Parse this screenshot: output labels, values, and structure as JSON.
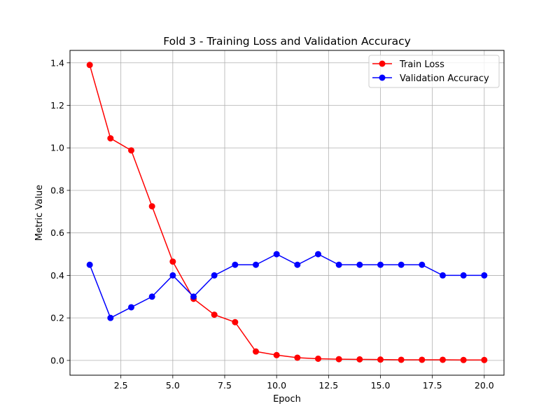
{
  "chart_data": {
    "type": "line",
    "title": "Fold 3 - Training Loss and Validation Accuracy",
    "xlabel": "Epoch",
    "ylabel": "Metric Value",
    "xlim": [
      0.05,
      20.95
    ],
    "ylim": [
      -0.0695,
      1.4585
    ],
    "xticks": [
      2.5,
      5.0,
      7.5,
      10.0,
      12.5,
      15.0,
      17.5,
      20.0
    ],
    "xtick_labels": [
      "2.5",
      "5.0",
      "7.5",
      "10.0",
      "12.5",
      "15.0",
      "17.5",
      "20.0"
    ],
    "yticks": [
      0.0,
      0.2,
      0.4,
      0.6,
      0.8,
      1.0,
      1.2,
      1.4
    ],
    "ytick_labels": [
      "0.0",
      "0.2",
      "0.4",
      "0.6",
      "0.8",
      "1.0",
      "1.2",
      "1.4"
    ],
    "grid": true,
    "legend_position": "top-right",
    "x": [
      1,
      2,
      3,
      4,
      5,
      6,
      7,
      8,
      9,
      10,
      11,
      12,
      13,
      14,
      15,
      16,
      17,
      18,
      19,
      20
    ],
    "series": [
      {
        "name": "Train Loss",
        "color": "#ff0000",
        "marker": "circle",
        "values": [
          1.39,
          1.045,
          0.988,
          0.725,
          0.465,
          0.29,
          0.215,
          0.18,
          0.042,
          0.025,
          0.013,
          0.008,
          0.006,
          0.005,
          0.004,
          0.003,
          0.003,
          0.003,
          0.002,
          0.002
        ]
      },
      {
        "name": "Validation Accuracy",
        "color": "#0000ff",
        "marker": "circle",
        "values": [
          0.45,
          0.2,
          0.25,
          0.3,
          0.4,
          0.3,
          0.4,
          0.45,
          0.45,
          0.5,
          0.45,
          0.5,
          0.45,
          0.45,
          0.45,
          0.45,
          0.45,
          0.4,
          0.4,
          0.4
        ]
      }
    ]
  }
}
